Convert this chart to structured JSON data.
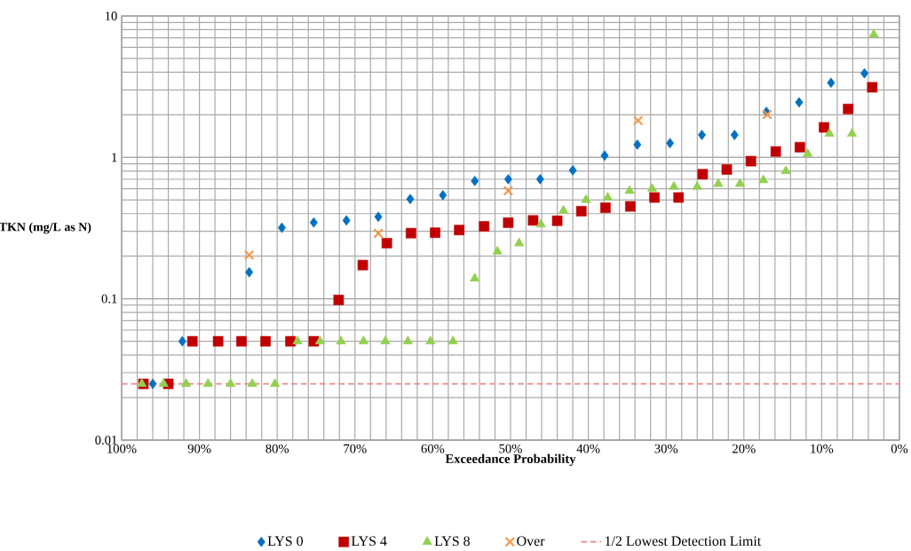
{
  "chart_data": {
    "type": "scatter",
    "xlabel": "Exceedance Probability",
    "ylabel": "TKN (mg/L as N)",
    "xlim": [
      100,
      0
    ],
    "xticks": [
      {
        "value": 100,
        "label": "100%"
      },
      {
        "value": 90,
        "label": "90%"
      },
      {
        "value": 80,
        "label": "80%"
      },
      {
        "value": 70,
        "label": "70%"
      },
      {
        "value": 60,
        "label": "60%"
      },
      {
        "value": 50,
        "label": "50%"
      },
      {
        "value": 40,
        "label": "40%"
      },
      {
        "value": 30,
        "label": "30%"
      },
      {
        "value": 20,
        "label": "20%"
      },
      {
        "value": 10,
        "label": "10%"
      },
      {
        "value": 0,
        "label": "0%"
      }
    ],
    "ylim": [
      0.01,
      10
    ],
    "yticks": [
      0.01,
      0.1,
      1,
      10
    ],
    "log": "y",
    "grid": true,
    "legend": "bottom",
    "series": [
      {
        "name": "LYS 0",
        "color": "#0070c0",
        "marker": "diamond",
        "x": [
          96.0,
          92.2,
          83.6,
          79.4,
          75.3,
          71.1,
          67.0,
          62.9,
          58.7,
          54.6,
          50.3,
          46.2,
          42.0,
          37.9,
          33.7,
          29.5,
          25.4,
          21.2,
          17.1,
          12.9,
          8.8,
          4.5
        ],
        "values": [
          0.025,
          0.05,
          0.154,
          0.318,
          0.346,
          0.358,
          0.38,
          0.507,
          0.54,
          0.68,
          0.7,
          0.7,
          0.81,
          1.03,
          1.23,
          1.26,
          1.44,
          1.44,
          2.1,
          2.45,
          3.37,
          3.93
        ]
      },
      {
        "name": "LYS 4",
        "color": "#c00000",
        "marker": "square",
        "x": [
          97.2,
          94.0,
          90.9,
          87.6,
          84.6,
          81.5,
          78.3,
          75.3,
          72.1,
          69.0,
          65.9,
          62.8,
          59.7,
          56.6,
          53.4,
          50.3,
          47.1,
          44.0,
          40.9,
          37.8,
          34.6,
          31.5,
          28.4,
          25.3,
          22.2,
          19.1,
          15.9,
          12.8,
          9.7,
          6.6,
          3.5
        ],
        "values": [
          0.025,
          0.025,
          0.05,
          0.05,
          0.05,
          0.05,
          0.05,
          0.05,
          0.098,
          0.173,
          0.247,
          0.291,
          0.293,
          0.306,
          0.325,
          0.345,
          0.358,
          0.356,
          0.416,
          0.44,
          0.45,
          0.52,
          0.52,
          0.76,
          0.82,
          0.94,
          1.1,
          1.18,
          1.63,
          2.2,
          3.13
        ]
      },
      {
        "name": "LYS 8",
        "color": "#92d050",
        "marker": "triangle",
        "x": [
          97.4,
          94.6,
          91.7,
          88.9,
          86.0,
          83.2,
          80.3,
          77.4,
          74.5,
          71.8,
          68.9,
          66.1,
          63.2,
          60.3,
          57.4,
          54.6,
          51.7,
          48.9,
          46.1,
          43.2,
          40.3,
          37.5,
          34.7,
          31.8,
          29.0,
          26.0,
          23.3,
          20.5,
          17.5,
          14.6,
          11.8,
          9.0,
          6.1,
          3.3
        ],
        "values": [
          0.025,
          0.025,
          0.025,
          0.025,
          0.025,
          0.025,
          0.025,
          0.05,
          0.05,
          0.05,
          0.05,
          0.05,
          0.05,
          0.05,
          0.05,
          0.139,
          0.216,
          0.247,
          0.336,
          0.42,
          0.5,
          0.52,
          0.58,
          0.6,
          0.62,
          0.62,
          0.65,
          0.65,
          0.69,
          0.8,
          1.06,
          1.47,
          1.47,
          7.4
        ]
      },
      {
        "name": "Over",
        "color": "#f79646",
        "marker": "cross",
        "x": [
          83.6,
          67.0,
          50.3,
          33.6,
          17.0
        ],
        "values": [
          0.204,
          0.29,
          0.58,
          1.82,
          2.01
        ]
      }
    ],
    "ref_lines": [
      {
        "axis": "y",
        "value": 0.025,
        "label": "1/2 Lowest Detection Limit",
        "color": "#e8898a",
        "line_style": "dashed"
      }
    ]
  }
}
